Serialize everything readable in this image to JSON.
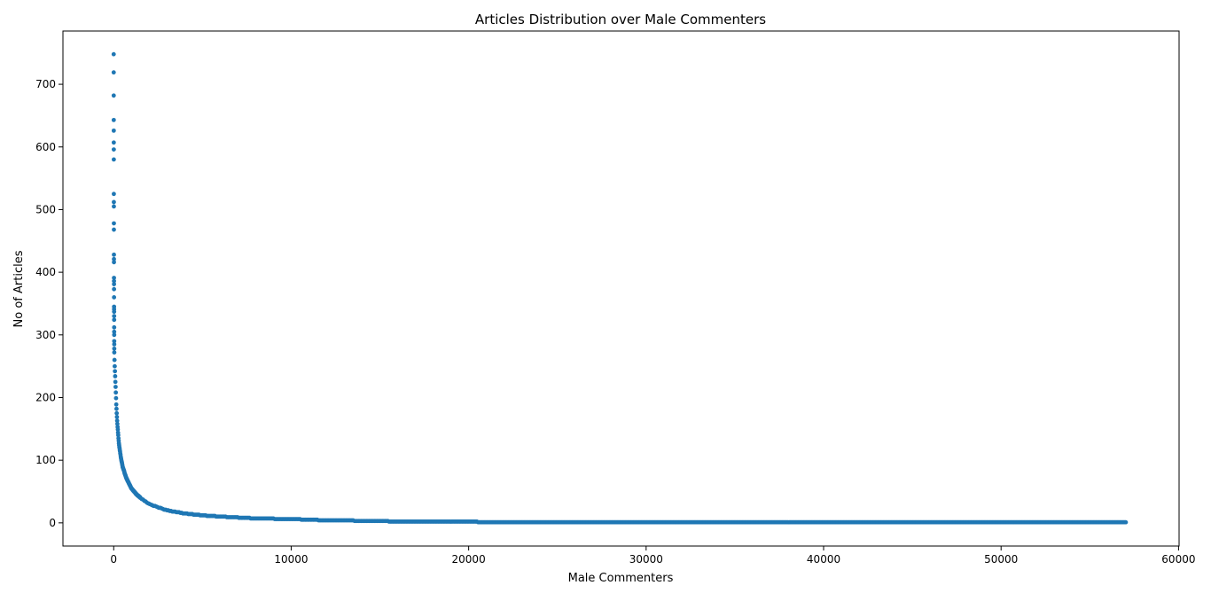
{
  "chart_data": {
    "type": "scatter",
    "title": "Articles Distribution over Male Commenters",
    "xlabel": "Male Commenters",
    "ylabel": "No of Articles",
    "xlim": [
      -2860,
      60030
    ],
    "ylim": [
      -37,
      785
    ],
    "x_ticks": [
      0,
      10000,
      20000,
      30000,
      40000,
      50000,
      60000
    ],
    "x_tick_labels": [
      "0",
      "10000",
      "20000",
      "30000",
      "40000",
      "50000",
      "60000"
    ],
    "y_ticks": [
      0,
      100,
      200,
      300,
      400,
      500,
      600,
      700
    ],
    "y_tick_labels": [
      "0",
      "100",
      "200",
      "300",
      "400",
      "500",
      "600",
      "700"
    ],
    "grid": false,
    "legend": "none",
    "marker_color": "#1f77b4",
    "x_max": 57100,
    "head_points": [
      [
        0,
        748
      ],
      [
        1,
        719
      ],
      [
        2,
        682
      ],
      [
        3,
        643
      ],
      [
        4,
        626
      ],
      [
        5,
        607
      ],
      [
        6,
        596
      ],
      [
        7,
        580
      ],
      [
        8,
        525
      ],
      [
        9,
        512
      ],
      [
        10,
        505
      ],
      [
        11,
        478
      ],
      [
        12,
        468
      ],
      [
        13,
        428
      ],
      [
        14,
        421
      ],
      [
        15,
        416
      ],
      [
        16,
        391
      ],
      [
        17,
        386
      ],
      [
        18,
        381
      ],
      [
        19,
        373
      ],
      [
        20,
        360
      ],
      [
        21,
        345
      ],
      [
        22,
        341
      ],
      [
        23,
        337
      ],
      [
        24,
        330
      ],
      [
        25,
        324
      ],
      [
        26,
        312
      ],
      [
        27,
        305
      ],
      [
        28,
        300
      ],
      [
        29,
        290
      ],
      [
        30,
        285
      ],
      [
        31,
        278
      ]
    ],
    "curve": [
      [
        32,
        272
      ],
      [
        50,
        255
      ],
      [
        80,
        235
      ],
      [
        110,
        215
      ],
      [
        150,
        185
      ],
      [
        200,
        160
      ],
      [
        250,
        142
      ],
      [
        300,
        125
      ],
      [
        400,
        105
      ],
      [
        500,
        90
      ],
      [
        700,
        72
      ],
      [
        1000,
        55
      ],
      [
        1300,
        45
      ],
      [
        1600,
        38
      ],
      [
        2000,
        30
      ],
      [
        2500,
        25
      ],
      [
        3000,
        20
      ],
      [
        4000,
        15
      ],
      [
        5000,
        12
      ],
      [
        6000,
        10
      ],
      [
        8000,
        7
      ],
      [
        10000,
        6
      ],
      [
        12000,
        4
      ],
      [
        15000,
        3
      ],
      [
        16000,
        2
      ],
      [
        25000,
        1
      ],
      [
        57100,
        1
      ]
    ]
  }
}
